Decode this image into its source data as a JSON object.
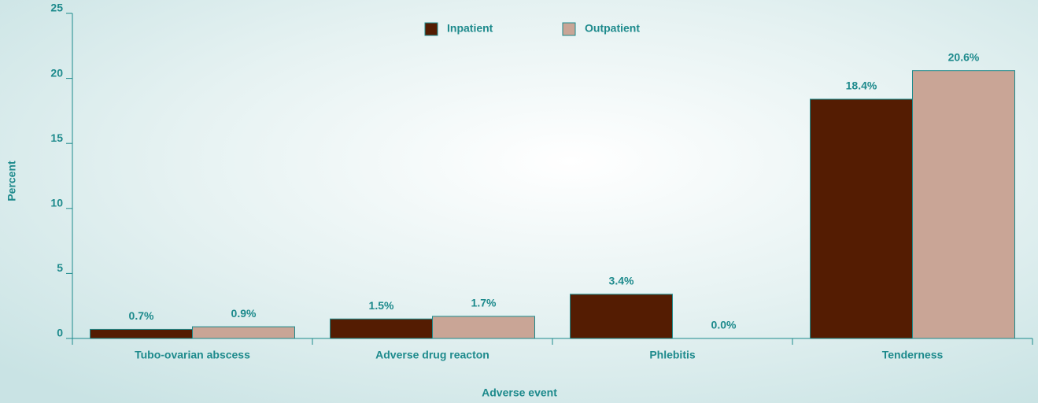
{
  "chart_data": {
    "type": "bar",
    "x_label": "Adverse event",
    "y_label": "Percent",
    "categories": [
      "Tubo-ovarian abscess",
      "Adverse drug reacton",
      "Phlebitis",
      "Tenderness"
    ],
    "series": [
      {
        "name": "Inpatient",
        "color": "#541c02",
        "values": [
          0.7,
          1.5,
          3.4,
          18.4
        ],
        "value_labels": [
          "0.7%",
          "1.5%",
          "3.4%",
          "18.4%"
        ]
      },
      {
        "name": "Outpatient",
        "color": "#c9a596",
        "values": [
          0.9,
          1.7,
          0,
          20.6
        ],
        "value_labels": [
          "0.9%",
          "1.7%",
          "0.0%",
          "20.6%"
        ]
      }
    ],
    "ylim": [
      0,
      25
    ],
    "yticks": [
      0,
      5,
      10,
      15,
      20,
      25
    ],
    "legend": "top"
  }
}
